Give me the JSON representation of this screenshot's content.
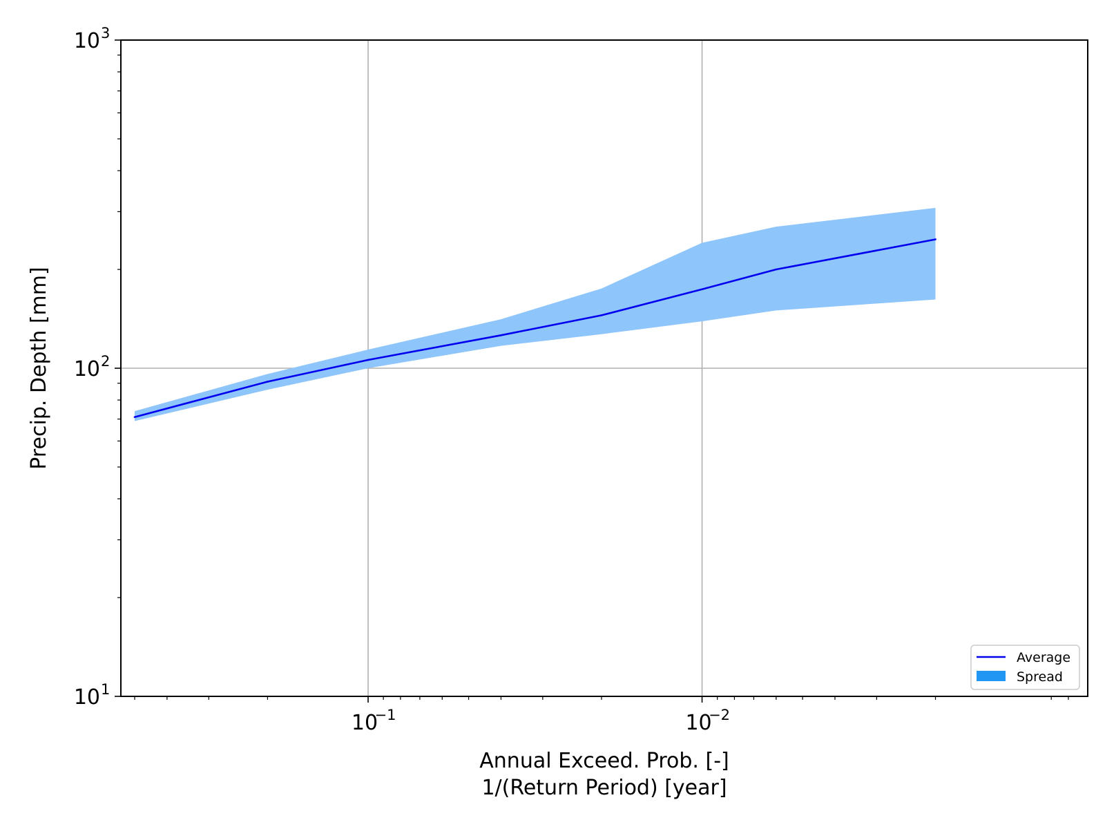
{
  "chart_data": {
    "type": "line",
    "xlabel": "Annual Exceed. Prob. [-]",
    "xlabel_line2": "1/(Return Period) [year]",
    "ylabel": "Precip. Depth [mm]",
    "xscale": "log",
    "yscale": "log",
    "x_inverted": true,
    "xlim": [
      0.55,
      0.0007
    ],
    "ylim": [
      10,
      1000
    ],
    "grid": true,
    "legend_position": "lower-right",
    "x_ticks": [
      {
        "value": 0.1,
        "base": "10",
        "exp": "−1"
      },
      {
        "value": 0.01,
        "base": "10",
        "exp": "−2"
      }
    ],
    "y_ticks": [
      {
        "value": 10,
        "base": "10",
        "exp": "1"
      },
      {
        "value": 100,
        "base": "10",
        "exp": "2"
      },
      {
        "value": 1000,
        "base": "10",
        "exp": "3"
      }
    ],
    "x": [
      0.5,
      0.2,
      0.1,
      0.04,
      0.02,
      0.01,
      0.006,
      0.002
    ],
    "series": [
      {
        "name": "Average",
        "type": "line",
        "color": "#0000ee",
        "values": [
          71,
          91,
          106,
          126,
          145,
          174,
          200,
          247
        ]
      },
      {
        "name": "Spread",
        "type": "band",
        "color": "#8ec5fb",
        "legend_color": "#2196f3",
        "lower": [
          69,
          86,
          100,
          117,
          127,
          139,
          150,
          162
        ],
        "upper": [
          74,
          96,
          114,
          141,
          175,
          241,
          270,
          308
        ]
      }
    ]
  }
}
